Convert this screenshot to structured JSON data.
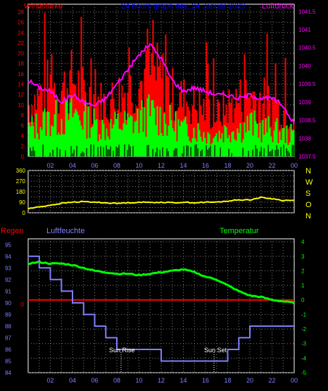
{
  "colors": {
    "red": "#ff0000",
    "green": "#00ff00",
    "magenta": "#ff00ff",
    "blue": "#0000ff",
    "yellow": "#ffff00",
    "lightblue": "#8080ff",
    "grey": "#808080",
    "white": "#ffffff",
    "black": "#000000"
  },
  "time_labels": [
    "02",
    "04",
    "06",
    "08",
    "10",
    "12",
    "14",
    "16",
    "18",
    "20",
    "22",
    "00"
  ],
  "chart_data": [
    {
      "type": "bar",
      "title": "24 hours graph day, 24 Januar 2023",
      "left_label": "Windstärke",
      "right_label": "Luftdruck",
      "x": [
        "00",
        "01",
        "02",
        "03",
        "04",
        "05",
        "06",
        "07",
        "08",
        "09",
        "10",
        "11",
        "12",
        "13",
        "14",
        "15",
        "16",
        "17",
        "18",
        "19",
        "20",
        "21",
        "22",
        "23",
        "24"
      ],
      "left_axis": {
        "ticks": [
          0,
          2,
          4,
          6,
          8,
          10,
          12,
          14,
          16,
          18,
          20,
          22,
          24,
          26,
          28
        ],
        "range": [
          0,
          29.5
        ]
      },
      "right_axis": {
        "ticks": [
          "1037.5",
          "1038",
          "1038.5",
          "1039",
          "1039.5",
          "1040",
          "1040.5",
          "1041",
          "1041.5"
        ],
        "range": [
          1037.5,
          1041.7
        ]
      },
      "series": [
        {
          "name": "Windstärke",
          "color": "red",
          "values": [
            10,
            12,
            14,
            13,
            15,
            12,
            11,
            10,
            12,
            13,
            14,
            16,
            15,
            12,
            11,
            10,
            9,
            8,
            10,
            11,
            12,
            11,
            10,
            9,
            8
          ]
        },
        {
          "name": "green",
          "color": "green",
          "values": [
            5,
            6,
            7,
            7,
            8,
            7,
            6,
            5,
            6,
            6,
            7,
            8,
            7,
            6,
            5,
            5,
            4,
            4,
            5,
            5,
            6,
            5,
            5,
            4,
            4
          ]
        },
        {
          "name": "Luftdruck",
          "color": "magenta",
          "values": [
            1039.6,
            1039.4,
            1039.3,
            1039.0,
            1039.2,
            1039.0,
            1038.9,
            1039.1,
            1039.5,
            1039.9,
            1040.3,
            1040.6,
            1040.2,
            1039.6,
            1039.3,
            1039.4,
            1039.3,
            1039.2,
            1039.2,
            1039.1,
            1039.2,
            1039.1,
            1039.1,
            1038.9,
            1038.4
          ]
        }
      ]
    },
    {
      "type": "line",
      "right_letters": [
        "N",
        "W",
        "S",
        "O",
        "N"
      ],
      "y_ticks": [
        0,
        45,
        90,
        135,
        180,
        225,
        270,
        315,
        360
      ],
      "y_labels": [
        "0",
        "90",
        "180",
        "270",
        "360"
      ],
      "ylim": [
        0,
        360
      ],
      "x": [
        0,
        1,
        2,
        3,
        4,
        5,
        6,
        7,
        8,
        9,
        10,
        11,
        12,
        13,
        14,
        15,
        16,
        17,
        18,
        19,
        20,
        21,
        22,
        23,
        24
      ],
      "series": [
        {
          "name": "wind direction",
          "color": "yellow",
          "values": [
            35,
            50,
            65,
            80,
            90,
            95,
            90,
            85,
            80,
            85,
            90,
            88,
            90,
            85,
            90,
            85,
            90,
            90,
            100,
            110,
            110,
            130,
            120,
            105,
            105
          ]
        }
      ]
    },
    {
      "type": "line",
      "left_label": "Regen",
      "center_label": "Luftfeuchte",
      "right_label": "Temperatur",
      "left_axis": {
        "ticks": [
          84,
          85,
          86,
          87,
          88,
          89,
          90,
          91,
          92,
          93,
          94,
          95
        ],
        "range": [
          84,
          95.5
        ]
      },
      "right_axis": {
        "ticks": [
          -5,
          -4,
          -3,
          -2,
          -1,
          0,
          1,
          2,
          3,
          4
        ],
        "range": [
          -5,
          4.2
        ]
      },
      "regen_zero_label": "0",
      "annotations": [
        "Sun Rise",
        "Sun Set"
      ],
      "series": [
        {
          "name": "Temperatur",
          "color": "green",
          "values": [
            2.5,
            2.6,
            2.5,
            2.5,
            2.4,
            2.2,
            2.0,
            1.9,
            1.8,
            1.8,
            1.7,
            1.8,
            1.9,
            2.0,
            2.1,
            1.9,
            1.6,
            1.4,
            1.0,
            0.6,
            0.3,
            0.2,
            0.0,
            -0.1,
            -0.2
          ]
        },
        {
          "name": "Luftfeuchte",
          "color": "lightblue",
          "values": [
            94,
            93,
            92,
            91,
            90,
            89,
            88,
            87,
            86,
            86,
            86,
            86,
            85,
            85,
            85,
            85,
            85,
            85,
            86,
            87,
            88,
            88,
            88,
            88,
            88
          ]
        },
        {
          "name": "Regen",
          "color": "red",
          "values": [
            0,
            0,
            0,
            0,
            0,
            0,
            0,
            0,
            0,
            0,
            0,
            0,
            0,
            0,
            0,
            0,
            0,
            0,
            0,
            0,
            0,
            0,
            0,
            0,
            0
          ]
        }
      ]
    }
  ]
}
